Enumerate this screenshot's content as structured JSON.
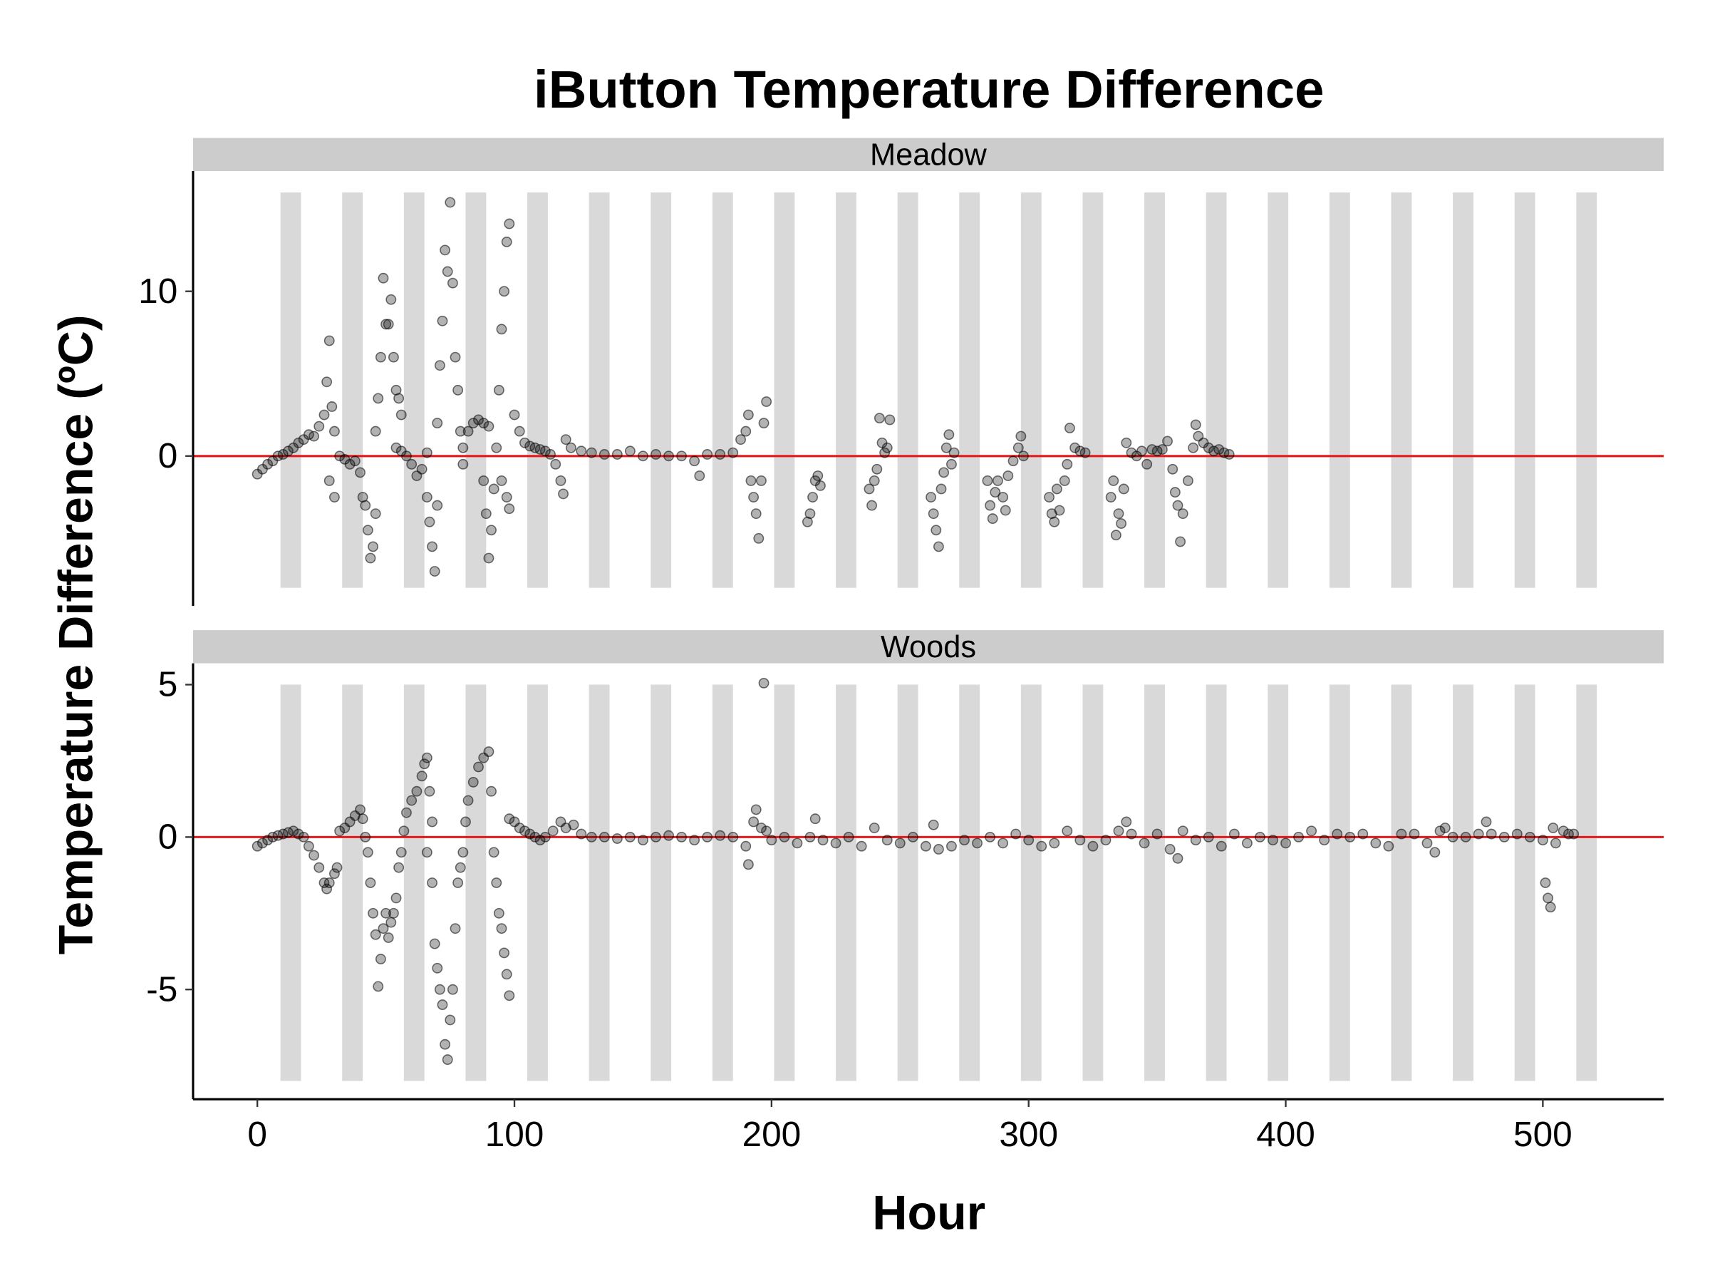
{
  "title": "iButton Temperature Difference",
  "x_label": "Hour",
  "y_label": "Temperature Difference (ºC)",
  "chart_data": [
    {
      "type": "scatter",
      "facet": "Meadow",
      "color": "#000000",
      "hline": 0,
      "hline_color": "#e31a1c",
      "xlim": [
        -25,
        547
      ],
      "ylim": [
        -9.1,
        17.3
      ],
      "yticks": [
        0,
        10
      ],
      "bands": {
        "x": [
          [
            9,
            17
          ],
          [
            33,
            41
          ],
          [
            57,
            65
          ],
          [
            81,
            89
          ],
          [
            105,
            113
          ],
          [
            129,
            137
          ],
          [
            153,
            161
          ],
          [
            177,
            185
          ],
          [
            201,
            209
          ],
          [
            225,
            233
          ],
          [
            249,
            257
          ],
          [
            273,
            281
          ],
          [
            297,
            305
          ],
          [
            321,
            329
          ],
          [
            345,
            353
          ],
          [
            369,
            377
          ],
          [
            393,
            401
          ],
          [
            417,
            425
          ],
          [
            441,
            449
          ],
          [
            465,
            473
          ],
          [
            489,
            497
          ],
          [
            513,
            521
          ]
        ],
        "ylim": [
          -8,
          16
        ],
        "color": "#d9d9d9"
      },
      "x": [
        0,
        2,
        4,
        6,
        8,
        10,
        12,
        14,
        16,
        18,
        20,
        22,
        24,
        26,
        27,
        28,
        29,
        30,
        28,
        30,
        32,
        34,
        36,
        38,
        40,
        41,
        42,
        43,
        44,
        45,
        46,
        46,
        47,
        48,
        49,
        50,
        51,
        52,
        53,
        54,
        55,
        56,
        54,
        56,
        58,
        60,
        62,
        64,
        66,
        66,
        67,
        68,
        69,
        70,
        70,
        71,
        72,
        73,
        74,
        75,
        76,
        77,
        78,
        79,
        80,
        80,
        82,
        84,
        86,
        88,
        90,
        88,
        89,
        90,
        91,
        92,
        93,
        94,
        95,
        96,
        97,
        98,
        97,
        98,
        95,
        100,
        102,
        104,
        106,
        108,
        110,
        112,
        114,
        116,
        118,
        119,
        120,
        122,
        126,
        130,
        135,
        140,
        145,
        150,
        155,
        160,
        165,
        170,
        172,
        175,
        180,
        185,
        188,
        190,
        191,
        192,
        193,
        194,
        195,
        196,
        197,
        198,
        214,
        215,
        216,
        217,
        218,
        219,
        238,
        239,
        240,
        241,
        242,
        243,
        244,
        245,
        246,
        262,
        263,
        264,
        265,
        266,
        267,
        268,
        269,
        270,
        271,
        284,
        285,
        286,
        287,
        288,
        290,
        291,
        292,
        294,
        296,
        297,
        298,
        308,
        309,
        310,
        311,
        312,
        314,
        315,
        316,
        318,
        320,
        322,
        332,
        333,
        334,
        335,
        336,
        337,
        338,
        340,
        342,
        344,
        346,
        348,
        350,
        352,
        354,
        356,
        357,
        358,
        359,
        360,
        362,
        364,
        365,
        366,
        368,
        370,
        372,
        374,
        376,
        378
      ],
      "values": [
        -1.1,
        -0.8,
        -0.5,
        -0.3,
        0,
        0.1,
        0.3,
        0.5,
        0.8,
        1.0,
        1.3,
        1.2,
        1.8,
        2.5,
        4.5,
        7.0,
        3.0,
        1.5,
        -1.5,
        -2.5,
        0,
        -0.2,
        -0.5,
        -0.3,
        -1.0,
        -2.5,
        -3,
        -4.5,
        -6.2,
        -5.5,
        -3.5,
        1.5,
        3.5,
        6,
        10.8,
        8,
        8,
        9.5,
        6,
        4,
        3.5,
        2.5,
        0.5,
        0.3,
        0,
        -0.5,
        -1.2,
        -0.8,
        0.2,
        -2.5,
        -4,
        -5.5,
        -7,
        -3,
        2,
        5.5,
        8.2,
        12.5,
        11.2,
        15.4,
        10.5,
        6,
        4,
        1.5,
        0.5,
        -0.5,
        1.5,
        2.0,
        2.2,
        2.0,
        1.8,
        -1.5,
        -3.5,
        -6.2,
        -4.5,
        -2,
        0.5,
        4,
        7.7,
        10,
        13,
        14.1,
        -2.5,
        -3.2,
        -1.5,
        2.5,
        1.5,
        0.8,
        0.6,
        0.5,
        0.4,
        0.3,
        0.1,
        -0.5,
        -1.5,
        -2.3,
        1,
        0.5,
        0.3,
        0.2,
        0.1,
        0.1,
        0.3,
        0,
        0.1,
        0,
        0,
        -0.3,
        -1.2,
        0.1,
        0.1,
        0.2,
        1.0,
        1.5,
        2.5,
        -1.5,
        -2.5,
        -3.5,
        -5,
        -1.5,
        2,
        3.3,
        -4,
        -3.5,
        -2.5,
        -1.5,
        -1.2,
        -1.8,
        -2,
        -3,
        -1.5,
        -0.8,
        2.3,
        0.8,
        0.2,
        0.5,
        2.2,
        -2.5,
        -3.5,
        -4.5,
        -5.5,
        -2,
        -1,
        0.5,
        1.3,
        -0.5,
        0.2,
        -1.5,
        -3,
        -3.8,
        -2.2,
        -1.5,
        -2.5,
        -3.3,
        -1.2,
        -0.3,
        0.5,
        1.2,
        0,
        -2.5,
        -3.5,
        -4,
        -2,
        -3.3,
        -1.5,
        -0.5,
        1.7,
        0.5,
        0.3,
        0.2,
        -2.5,
        -1.5,
        -4.8,
        -3.5,
        -4.1,
        -2,
        0.8,
        0.2,
        0,
        0.3,
        -0.5,
        0.4,
        0.3,
        0.4,
        0.9,
        -0.8,
        -2.2,
        -3,
        -5.2,
        -3.5,
        -1.5,
        0.5,
        1.9,
        1.2,
        0.8,
        0.5,
        0.3,
        0.4,
        0.2,
        0.1
      ]
    },
    {
      "type": "scatter",
      "facet": "Woods",
      "color": "#000000",
      "hline": 0,
      "hline_color": "#e31a1c",
      "xlim": [
        -25,
        547
      ],
      "xticks": [
        0,
        100,
        200,
        300,
        400,
        500
      ],
      "ylim": [
        -8.6,
        5.7
      ],
      "yticks": [
        -5,
        0,
        5
      ],
      "bands": {
        "x": [
          [
            9,
            17
          ],
          [
            33,
            41
          ],
          [
            57,
            65
          ],
          [
            81,
            89
          ],
          [
            105,
            113
          ],
          [
            129,
            137
          ],
          [
            153,
            161
          ],
          [
            177,
            185
          ],
          [
            201,
            209
          ],
          [
            225,
            233
          ],
          [
            249,
            257
          ],
          [
            273,
            281
          ],
          [
            297,
            305
          ],
          [
            321,
            329
          ],
          [
            345,
            353
          ],
          [
            369,
            377
          ],
          [
            393,
            401
          ],
          [
            417,
            425
          ],
          [
            441,
            449
          ],
          [
            465,
            473
          ],
          [
            489,
            497
          ],
          [
            513,
            521
          ]
        ],
        "ylim": [
          -8,
          5
        ],
        "color": "#d9d9d9"
      },
      "x": [
        0,
        2,
        4,
        6,
        8,
        10,
        12,
        14,
        16,
        18,
        20,
        22,
        24,
        26,
        27,
        28,
        30,
        31,
        32,
        34,
        36,
        38,
        40,
        41,
        42,
        43,
        44,
        45,
        46,
        47,
        48,
        49,
        50,
        51,
        52,
        53,
        54,
        55,
        56,
        57,
        58,
        60,
        62,
        64,
        65,
        66,
        67,
        68,
        66,
        68,
        69,
        70,
        71,
        72,
        73,
        74,
        75,
        76,
        77,
        78,
        79,
        80,
        81,
        82,
        84,
        86,
        88,
        90,
        91,
        92,
        93,
        94,
        95,
        96,
        97,
        98,
        98,
        100,
        102,
        104,
        106,
        108,
        110,
        112,
        115,
        118,
        120,
        123,
        126,
        130,
        135,
        140,
        145,
        150,
        155,
        160,
        165,
        170,
        175,
        180,
        185,
        190,
        191,
        193,
        194,
        196,
        197,
        198,
        200,
        205,
        210,
        215,
        217,
        220,
        225,
        230,
        235,
        240,
        245,
        250,
        255,
        260,
        263,
        265,
        270,
        275,
        280,
        285,
        290,
        295,
        300,
        305,
        310,
        315,
        320,
        325,
        330,
        335,
        338,
        340,
        345,
        350,
        355,
        358,
        360,
        365,
        370,
        375,
        380,
        385,
        390,
        395,
        400,
        405,
        410,
        415,
        420,
        425,
        430,
        435,
        440,
        445,
        450,
        455,
        458,
        460,
        462,
        465,
        470,
        475,
        478,
        480,
        485,
        490,
        495,
        500,
        501,
        502,
        503,
        504,
        505,
        508,
        510,
        512
      ],
      "values": [
        -0.3,
        -0.2,
        -0.1,
        0,
        0.05,
        0.1,
        0.15,
        0.2,
        0.1,
        0,
        -0.3,
        -0.6,
        -1.0,
        -1.5,
        -1.7,
        -1.5,
        -1.2,
        -1.0,
        0.2,
        0.3,
        0.5,
        0.7,
        0.9,
        0.6,
        0,
        -0.5,
        -1.5,
        -2.5,
        -3.2,
        -4.9,
        -4,
        -3,
        -2.5,
        -3.3,
        -2.8,
        -2.5,
        -2.0,
        -1.0,
        -0.5,
        0.2,
        0.8,
        1.2,
        1.5,
        2.0,
        2.4,
        2.6,
        1.5,
        0.5,
        -0.5,
        -1.5,
        -3.5,
        -4.3,
        -5.0,
        -5.5,
        -6.8,
        -7.3,
        -6,
        -5,
        -3,
        -1.5,
        -1.0,
        -0.5,
        0.5,
        1.2,
        1.8,
        2.3,
        2.6,
        2.8,
        1.5,
        -0.5,
        -1.5,
        -2.5,
        -3.0,
        -3.8,
        -4.5,
        -5.2,
        0.6,
        0.5,
        0.3,
        0.2,
        0.1,
        0,
        -0.1,
        0,
        0.2,
        0.5,
        0.3,
        0.4,
        0.1,
        0,
        0,
        -0.05,
        0,
        -0.1,
        0,
        0.05,
        0,
        -0.1,
        0,
        0.05,
        0,
        -0.3,
        -0.9,
        0.5,
        0.9,
        0.3,
        5.05,
        0.2,
        -0.1,
        0,
        -0.2,
        0,
        0.6,
        -0.1,
        -0.2,
        0,
        -0.3,
        0.3,
        -0.1,
        -0.2,
        0,
        -0.3,
        0.4,
        -0.4,
        -0.3,
        -0.1,
        -0.2,
        0,
        -0.2,
        0.1,
        -0.1,
        -0.3,
        -0.2,
        0.2,
        -0.1,
        -0.3,
        -0.1,
        0.2,
        0.5,
        0.1,
        -0.2,
        0.1,
        -0.4,
        -0.7,
        0.2,
        -0.1,
        0,
        -0.3,
        0.1,
        -0.2,
        0,
        -0.1,
        -0.2,
        0,
        0.2,
        -0.1,
        0.1,
        0,
        0.1,
        -0.2,
        -0.3,
        0.1,
        0.1,
        -0.2,
        -0.5,
        0.2,
        0.3,
        0,
        0,
        0.1,
        0.5,
        0.1,
        0,
        0.1,
        0,
        -0.1,
        -1.5,
        -2.0,
        -2.3,
        0.3,
        -0.2,
        0.2,
        0.1,
        0.1
      ]
    }
  ]
}
